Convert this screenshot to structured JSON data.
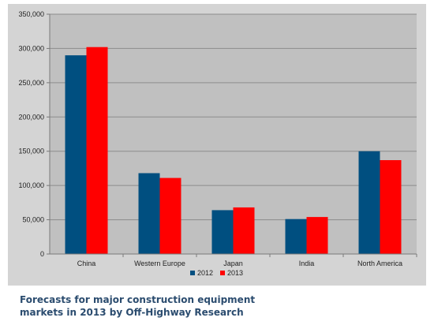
{
  "chart_data": {
    "type": "bar",
    "categories": [
      "China",
      "Western Europe",
      "Japan",
      "India",
      "North America"
    ],
    "series": [
      {
        "name": "2012",
        "color": "#004f80",
        "values": [
          290000,
          118000,
          64000,
          51000,
          150000
        ]
      },
      {
        "name": "2013",
        "color": "#ff0000",
        "values": [
          302000,
          111000,
          68000,
          54000,
          137000
        ]
      }
    ],
    "ylim": [
      0,
      350000
    ],
    "yticks": [
      0,
      50000,
      100000,
      150000,
      200000,
      250000,
      300000,
      350000
    ],
    "ytick_labels": [
      "0",
      "50,000",
      "100,000",
      "150,000",
      "200,000",
      "250,000",
      "300,000",
      "350,000"
    ],
    "grid": true,
    "legend_position": "bottom-center",
    "plot_background": "#c0c0c0",
    "frame_background": "#d4d4d4"
  },
  "caption": {
    "line1": "Forecasts for major construction equipment",
    "line2": "markets in 2013 by Off-Highway Research"
  }
}
